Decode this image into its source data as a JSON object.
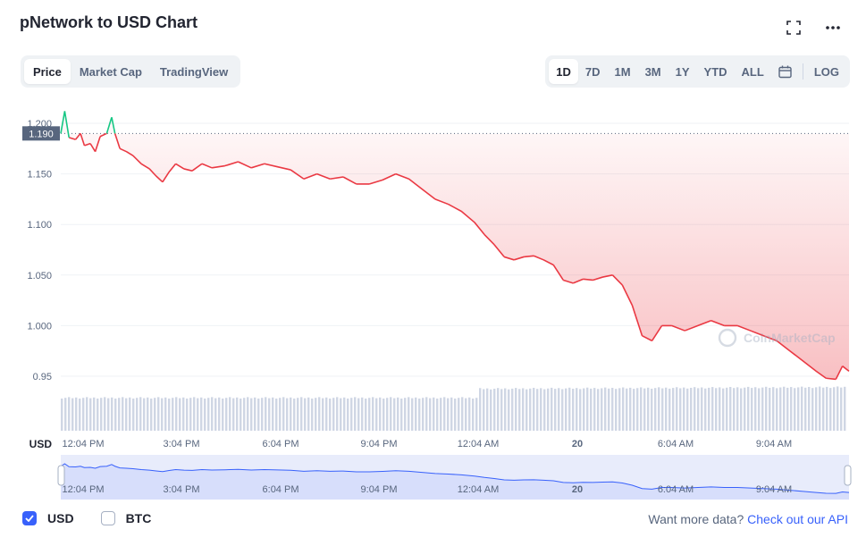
{
  "title": "pNetwork to USD Chart",
  "header_icons": [
    "fullscreen-icon",
    "more-icon"
  ],
  "view_tabs": [
    {
      "label": "Price",
      "active": true
    },
    {
      "label": "Market Cap",
      "active": false
    },
    {
      "label": "TradingView",
      "active": false
    }
  ],
  "range_tabs": [
    {
      "label": "1D",
      "active": true
    },
    {
      "label": "7D",
      "active": false
    },
    {
      "label": "1M",
      "active": false
    },
    {
      "label": "3M",
      "active": false
    },
    {
      "label": "1Y",
      "active": false
    },
    {
      "label": "YTD",
      "active": false
    },
    {
      "label": "ALL",
      "active": false
    }
  ],
  "log_label": "LOG",
  "current_price_label": "1.190",
  "currency_axis_label": "USD",
  "watermark": "CoinMarketCap",
  "colors": {
    "down": "#ea3943",
    "up": "#16c784",
    "accent": "#3861fb",
    "volume": "#cfd6e4"
  },
  "checkboxes": [
    {
      "label": "USD",
      "checked": true
    },
    {
      "label": "BTC",
      "checked": false
    }
  ],
  "api_prompt": "Want more data?",
  "api_link": "Check out our API",
  "chart_data": {
    "type": "line",
    "title": "pNetwork to USD Chart",
    "ylabel": "USD",
    "yticks": [
      "1.200",
      "1.150",
      "1.100",
      "1.050",
      "1.000",
      "0.95"
    ],
    "ylim": [
      0.93,
      1.21
    ],
    "reference_price": 1.19,
    "xticks": [
      "12:04 PM",
      "3:04 PM",
      "6:04 PM",
      "9:04 PM",
      "12:04 AM",
      "20",
      "6:04 AM",
      "9:04 AM"
    ],
    "xlim": [
      0,
      24
    ],
    "grid": true,
    "series": [
      {
        "x": [
          0,
          0.12,
          0.25,
          0.45,
          0.6,
          0.72,
          0.9,
          1.05,
          1.2,
          1.4,
          1.55,
          1.65,
          1.8,
          2.0,
          2.2,
          2.45,
          2.7,
          2.9,
          3.1,
          3.3,
          3.5,
          3.75,
          4.0,
          4.3,
          4.6,
          5.0,
          5.4,
          5.8,
          6.2,
          6.6,
          7.0,
          7.4,
          7.8,
          8.2,
          8.6,
          9.0,
          9.4,
          9.8,
          10.2,
          10.6,
          11.0,
          11.4,
          11.8,
          12.2,
          12.6,
          12.9,
          13.2,
          13.5,
          13.8,
          14.1,
          14.4,
          14.7,
          15.0,
          15.3,
          15.6,
          15.9,
          16.2,
          16.5,
          16.8,
          17.1,
          17.4,
          17.7,
          18.0,
          18.3,
          18.6,
          19.0,
          19.4,
          19.8,
          20.2,
          20.6,
          21.0,
          21.4,
          21.8,
          22.2,
          22.6,
          23.0,
          23.3,
          23.6,
          23.8,
          24.0
        ],
        "y": [
          1.19,
          1.212,
          1.186,
          1.184,
          1.19,
          1.178,
          1.18,
          1.172,
          1.187,
          1.19,
          1.206,
          1.19,
          1.175,
          1.172,
          1.168,
          1.16,
          1.155,
          1.148,
          1.142,
          1.152,
          1.16,
          1.155,
          1.153,
          1.16,
          1.156,
          1.158,
          1.162,
          1.156,
          1.16,
          1.157,
          1.154,
          1.145,
          1.15,
          1.145,
          1.147,
          1.14,
          1.14,
          1.144,
          1.15,
          1.145,
          1.135,
          1.125,
          1.12,
          1.113,
          1.102,
          1.09,
          1.08,
          1.068,
          1.065,
          1.068,
          1.069,
          1.065,
          1.06,
          1.045,
          1.042,
          1.046,
          1.045,
          1.048,
          1.05,
          1.04,
          1.02,
          0.99,
          0.985,
          1.0,
          1.0,
          0.995,
          1.0,
          1.005,
          1.0,
          1.0,
          0.995,
          0.99,
          0.985,
          0.975,
          0.965,
          0.955,
          0.948,
          0.947,
          0.96,
          0.955
        ]
      }
    ]
  }
}
